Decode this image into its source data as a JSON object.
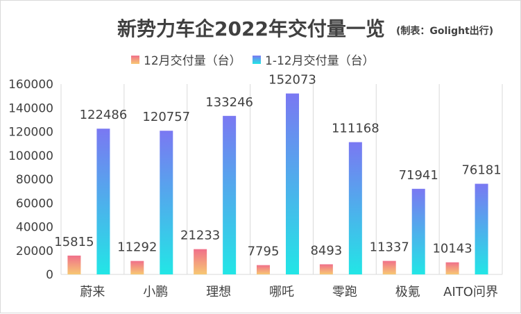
{
  "chart_data": {
    "type": "bar",
    "title": "新势力车企2022年交付量一览",
    "subtitle": "(制表：Golight出行)",
    "categories": [
      "蔚来",
      "小鹏",
      "理想",
      "哪吒",
      "零跑",
      "极氪",
      "AITO问界"
    ],
    "series": [
      {
        "name": "12月交付量（台）",
        "values": [
          15815,
          11292,
          21233,
          7795,
          8493,
          11337,
          10143
        ]
      },
      {
        "name": "1-12月交付量（台）",
        "values": [
          122486,
          120757,
          133246,
          152073,
          111168,
          71941,
          76181
        ]
      }
    ],
    "ylim": [
      0,
      160000
    ],
    "yticks": [
      0,
      20000,
      40000,
      60000,
      80000,
      100000,
      120000,
      140000,
      160000
    ],
    "grid": "vertical category separators",
    "legend": "top",
    "colors": {
      "series1_top": "#f0708a",
      "series1_bottom": "#f7c873",
      "series2_top": "#7a78f2",
      "series2_bottom": "#22e6e6",
      "axis": "#d9d9d9",
      "text": "#404040"
    }
  }
}
